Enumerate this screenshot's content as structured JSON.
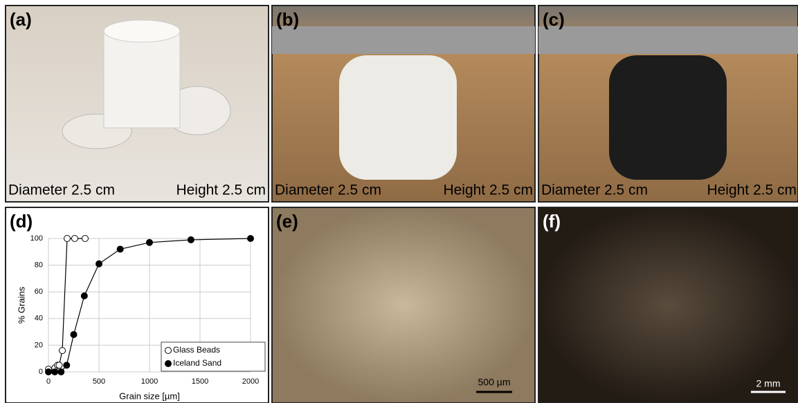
{
  "panels": [
    {
      "label": "(a)",
      "caption_left": "Diameter 2.5 cm",
      "caption_right": "Height 2.5 cm"
    },
    {
      "label": "(b)",
      "caption_left": "Diameter 2.5 cm",
      "caption_right": "Height 2.5 cm"
    },
    {
      "label": "(c)",
      "caption_left": "Diameter 2.5 cm",
      "caption_right": "Height 2.5 cm"
    },
    {
      "label": "(d)"
    },
    {
      "label": "(e)",
      "scale_bar": "500 µm"
    },
    {
      "label": "(f)",
      "scale_bar": "2 mm"
    }
  ],
  "chart_data": {
    "type": "line",
    "x_label": "Grain size [µm]",
    "y_label": "% Grains",
    "xlim": [
      0,
      2000
    ],
    "xticks": [
      0,
      500,
      1000,
      1500,
      2000
    ],
    "ylim": [
      0,
      100
    ],
    "yticks": [
      0,
      20,
      40,
      60,
      80,
      100
    ],
    "grid": true,
    "legend": "lower right",
    "series": [
      {
        "name": "Glass Beads",
        "color": "#000000",
        "marker": "open",
        "x": [
          0,
          63,
          90,
          106,
          137,
          185,
          260,
          363
        ],
        "values": [
          2,
          3,
          5,
          5,
          16,
          100,
          100,
          100
        ]
      },
      {
        "name": "Iceland Sand",
        "color": "#000000",
        "marker": "filled",
        "x": [
          0,
          63,
          125,
          180,
          250,
          355,
          500,
          710,
          1000,
          1410,
          2000
        ],
        "values": [
          0,
          0,
          0,
          5,
          28,
          57,
          81,
          92,
          97,
          99,
          100
        ]
      }
    ]
  }
}
